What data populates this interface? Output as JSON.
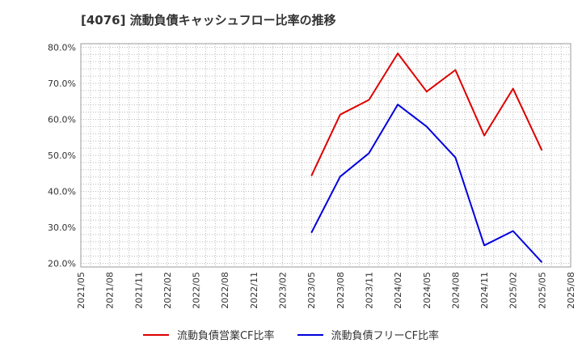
{
  "chart_data": {
    "type": "line",
    "title": "[4076]  流動負債キャッシュフロー比率の推移",
    "x_tick_labels": [
      "2021/05",
      "2021/08",
      "2021/11",
      "2022/02",
      "2022/05",
      "2022/08",
      "2022/11",
      "2023/02",
      "2023/05",
      "2023/08",
      "2023/11",
      "2024/02",
      "2024/05",
      "2024/08",
      "2024/11",
      "2025/02",
      "2025/05",
      "2025/08"
    ],
    "y_tick_labels": [
      "80.0%",
      "70.0%",
      "60.0%",
      "50.0%",
      "40.0%",
      "30.0%",
      "20.0%"
    ],
    "ylim": [
      19.0,
      81.0
    ],
    "grid": true,
    "legend_position": "bottom",
    "series": [
      {
        "name": "流動負債営業CF比率",
        "color": "#dd0000",
        "points": [
          {
            "x": "2023/05",
            "y": 44.3
          },
          {
            "x": "2023/08",
            "y": 61.3
          },
          {
            "x": "2023/11",
            "y": 65.4
          },
          {
            "x": "2024/02",
            "y": 78.3
          },
          {
            "x": "2024/05",
            "y": 67.7
          },
          {
            "x": "2024/08",
            "y": 73.7
          },
          {
            "x": "2024/11",
            "y": 55.5
          },
          {
            "x": "2025/02",
            "y": 68.5
          },
          {
            "x": "2025/05",
            "y": 51.4
          }
        ]
      },
      {
        "name": "流動負債フリーCF比率",
        "color": "#0000dd",
        "points": [
          {
            "x": "2023/05",
            "y": 28.5
          },
          {
            "x": "2023/08",
            "y": 44.1
          },
          {
            "x": "2023/11",
            "y": 50.6
          },
          {
            "x": "2024/02",
            "y": 64.1
          },
          {
            "x": "2024/05",
            "y": 58.0
          },
          {
            "x": "2024/08",
            "y": 49.4
          },
          {
            "x": "2024/11",
            "y": 25.0
          },
          {
            "x": "2025/02",
            "y": 29.0
          },
          {
            "x": "2025/05",
            "y": 20.3
          }
        ]
      }
    ]
  }
}
